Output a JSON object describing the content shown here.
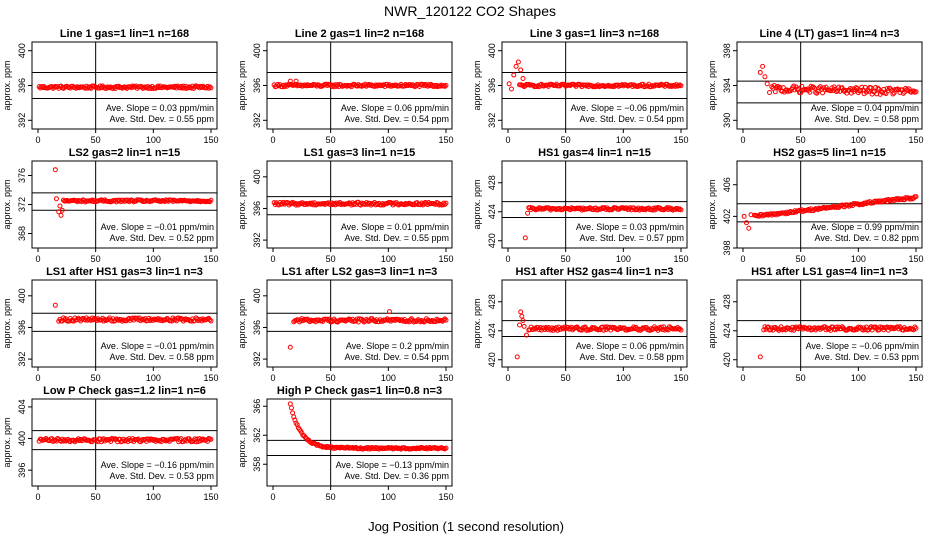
{
  "figure": {
    "title": "NWR_120122  CO2 Shapes",
    "xlabel": "Jog Position (1 second resolution)"
  },
  "chart_data": [
    {
      "type": "scatter",
      "title": "Line 1 gas=1 lin=1 n=168",
      "ylabel": "approx. ppm",
      "xlim": [
        0,
        150
      ],
      "ylim": [
        391,
        401
      ],
      "yticks": [
        392,
        396,
        400
      ],
      "xticks": [
        0,
        50,
        100,
        150
      ],
      "hlines": [
        397.5,
        394.5
      ],
      "vline": 50,
      "slope": "Ave. Slope = 0.03  ppm/min",
      "std": "Ave. Std. Dev. = 0.55  ppm",
      "points": {
        "start": 1,
        "end": 150,
        "base": 395.8,
        "trend": 0.0,
        "noise": 0.15,
        "spikes": []
      }
    },
    {
      "type": "scatter",
      "title": "Line 2 gas=1 lin=2 n=168",
      "ylabel": "approx. ppm",
      "xlim": [
        0,
        150
      ],
      "ylim": [
        391,
        401
      ],
      "yticks": [
        392,
        396,
        400
      ],
      "xticks": [
        0,
        50,
        100,
        150
      ],
      "hlines": [
        397.5,
        394.5
      ],
      "vline": 50,
      "slope": "Ave. Slope = 0.06  ppm/min",
      "std": "Ave. Std. Dev. = 0.54  ppm",
      "points": {
        "start": 1,
        "end": 150,
        "base": 396.0,
        "trend": 0.0,
        "noise": 0.15,
        "spikes": [
          [
            15,
            396.5
          ],
          [
            20,
            396.5
          ]
        ]
      }
    },
    {
      "type": "scatter",
      "title": "Line 3 gas=1 lin=3 n=168",
      "ylabel": "approx. ppm",
      "xlim": [
        0,
        150
      ],
      "ylim": [
        391,
        401
      ],
      "yticks": [
        392,
        396,
        400
      ],
      "xticks": [
        0,
        50,
        100,
        150
      ],
      "hlines": [
        397.5,
        394.5
      ],
      "vline": 50,
      "slope": "Ave. Slope = −0.06  ppm/min",
      "std": "Ave. Std. Dev. = 0.54  ppm",
      "points": {
        "start": 10,
        "end": 150,
        "base": 396.0,
        "trend": 0.0,
        "noise": 0.15,
        "spikes": [
          [
            1,
            396.2
          ],
          [
            3,
            395.6
          ],
          [
            5,
            397.2
          ],
          [
            7,
            398.2
          ],
          [
            9,
            398.7
          ],
          [
            11,
            397.8
          ],
          [
            13,
            396.8
          ]
        ]
      }
    },
    {
      "type": "scatter",
      "title": "Line 4 (LT) gas=1 lin=4 n=3",
      "ylabel": "approx. ppm",
      "xlim": [
        0,
        150
      ],
      "ylim": [
        389,
        399
      ],
      "yticks": [
        390,
        394,
        398
      ],
      "xticks": [
        0,
        50,
        100,
        150
      ],
      "hlines": [
        394.5,
        392.0
      ],
      "vline": 50,
      "slope": "Ave. Slope = 0.04  ppm/min",
      "std": "Ave. Std. Dev. = 0.58  ppm",
      "points": {
        "start": 25,
        "end": 150,
        "base": 393.6,
        "trend": -0.3,
        "noise": 0.4,
        "spikes": [
          [
            15,
            395.5
          ],
          [
            17,
            396.2
          ],
          [
            19,
            395.0
          ],
          [
            21,
            394.2
          ],
          [
            23,
            393.2
          ]
        ]
      }
    },
    {
      "type": "scatter",
      "title": "LS2 gas=2 lin=1 n=15",
      "ylabel": "approx. ppm",
      "xlim": [
        0,
        150
      ],
      "ylim": [
        366,
        378
      ],
      "yticks": [
        368,
        372,
        376
      ],
      "xticks": [
        0,
        50,
        100,
        150
      ],
      "hlines": [
        373.6,
        371.2
      ],
      "vline": 50,
      "slope": "Ave. Slope = −0.01  ppm/min",
      "std": "Ave. Std. Dev. = 0.52  ppm",
      "points": {
        "start": 22,
        "end": 150,
        "base": 372.5,
        "trend": 0.0,
        "noise": 0.15,
        "spikes": [
          [
            15,
            376.8
          ],
          [
            16,
            372.8
          ],
          [
            18,
            371.0
          ],
          [
            19,
            371.8
          ],
          [
            20,
            370.5
          ],
          [
            21,
            371.2
          ]
        ]
      }
    },
    {
      "type": "scatter",
      "title": "LS1 gas=3 lin=1 n=15",
      "ylabel": "approx. ppm",
      "xlim": [
        0,
        150
      ],
      "ylim": [
        391,
        402
      ],
      "yticks": [
        392,
        396,
        400
      ],
      "xticks": [
        0,
        50,
        100,
        150
      ],
      "hlines": [
        397.5,
        395.2
      ],
      "vline": 50,
      "slope": "Ave. Slope = 0.01  ppm/min",
      "std": "Ave. Std. Dev. = 0.55  ppm",
      "points": {
        "start": 1,
        "end": 150,
        "base": 396.6,
        "trend": 0.0,
        "noise": 0.18,
        "spikes": []
      }
    },
    {
      "type": "scatter",
      "title": "HS1 gas=4 lin=1 n=15",
      "ylabel": "approx. ppm",
      "xlim": [
        0,
        150
      ],
      "ylim": [
        419,
        431
      ],
      "yticks": [
        420,
        424,
        428
      ],
      "xticks": [
        0,
        50,
        100,
        150
      ],
      "hlines": [
        425.4,
        423.2
      ],
      "vline": 50,
      "slope": "Ave. Slope = 0.03  ppm/min",
      "std": "Ave. Std. Dev. = 0.57  ppm",
      "points": {
        "start": 18,
        "end": 150,
        "base": 424.4,
        "trend": 0.0,
        "noise": 0.18,
        "spikes": [
          [
            15,
            420.4
          ],
          [
            17,
            423.8
          ]
        ]
      }
    },
    {
      "type": "scatter",
      "title": "HS2 gas=5 lin=1 n=15",
      "ylabel": "approx. ppm",
      "xlim": [
        0,
        150
      ],
      "ylim": [
        398,
        409
      ],
      "yticks": [
        398,
        402,
        406
      ],
      "xticks": [
        0,
        50,
        100,
        150
      ],
      "hlines": [
        403.6,
        401.3
      ],
      "vline": 50,
      "slope": "Ave. Slope = 0.99  ppm/min",
      "std": "Ave. Std. Dev. = 0.82  ppm",
      "points": {
        "start": 10,
        "end": 150,
        "base": 402.0,
        "trend": 2.4,
        "noise": 0.15,
        "spikes": [
          [
            1,
            402.0
          ],
          [
            3,
            401.2
          ],
          [
            5,
            400.5
          ],
          [
            7,
            402.2
          ]
        ]
      }
    },
    {
      "type": "scatter",
      "title": "LS1 after HS1 gas=3 lin=1 n=3",
      "ylabel": "approx. ppm",
      "xlim": [
        0,
        150
      ],
      "ylim": [
        391,
        402
      ],
      "yticks": [
        392,
        396,
        400
      ],
      "xticks": [
        0,
        50,
        100,
        150
      ],
      "hlines": [
        397.8,
        395.5
      ],
      "vline": 50,
      "slope": "Ave. Slope = −0.01  ppm/min",
      "std": "Ave. Std. Dev. = 0.58  ppm",
      "points": {
        "start": 18,
        "end": 150,
        "base": 397.0,
        "trend": 0.0,
        "noise": 0.22,
        "spikes": [
          [
            15,
            398.8
          ]
        ]
      }
    },
    {
      "type": "scatter",
      "title": "LS1 after LS2 gas=3 lin=1 n=3",
      "ylabel": "approx. ppm",
      "xlim": [
        0,
        150
      ],
      "ylim": [
        391,
        402
      ],
      "yticks": [
        392,
        396,
        400
      ],
      "xticks": [
        0,
        50,
        100,
        150
      ],
      "hlines": [
        397.8,
        395.5
      ],
      "vline": 50,
      "slope": "Ave. Slope = 0.2  ppm/min",
      "std": "Ave. Std. Dev. = 0.54  ppm",
      "points": {
        "start": 18,
        "end": 150,
        "base": 396.9,
        "trend": 0.0,
        "noise": 0.22,
        "spikes": [
          [
            15,
            393.5
          ],
          [
            101,
            398.0
          ]
        ]
      }
    },
    {
      "type": "scatter",
      "title": "HS1 after HS2 gas=4 lin=1 n=3",
      "ylabel": "approx. ppm",
      "xlim": [
        0,
        150
      ],
      "ylim": [
        419,
        431
      ],
      "yticks": [
        420,
        424,
        428
      ],
      "xticks": [
        0,
        50,
        100,
        150
      ],
      "hlines": [
        425.4,
        423.2
      ],
      "vline": 50,
      "slope": "Ave. Slope = 0.06  ppm/min",
      "std": "Ave. Std. Dev. = 0.58  ppm",
      "points": {
        "start": 18,
        "end": 150,
        "base": 424.3,
        "trend": 0.0,
        "noise": 0.25,
        "spikes": [
          [
            8,
            420.4
          ],
          [
            10,
            424.8
          ],
          [
            11,
            426.6
          ],
          [
            12,
            426.0
          ],
          [
            13,
            425.4
          ],
          [
            14,
            424.6
          ],
          [
            16,
            423.4
          ]
        ]
      }
    },
    {
      "type": "scatter",
      "title": "HS1 after LS1 gas=4 lin=1 n=3",
      "ylabel": "approx. ppm",
      "xlim": [
        0,
        150
      ],
      "ylim": [
        419,
        431
      ],
      "yticks": [
        420,
        424,
        428
      ],
      "xticks": [
        0,
        50,
        100,
        150
      ],
      "hlines": [
        425.4,
        423.2
      ],
      "vline": 50,
      "slope": "Ave. Slope = −0.06  ppm/min",
      "std": "Ave. Std. Dev. = 0.53  ppm",
      "points": {
        "start": 18,
        "end": 150,
        "base": 424.3,
        "trend": 0.0,
        "noise": 0.25,
        "spikes": [
          [
            15,
            420.4
          ]
        ]
      }
    },
    {
      "type": "scatter",
      "title": "Low P Check gas=1.2 lin=1 n=6",
      "ylabel": "approx. ppm",
      "xlim": [
        0,
        150
      ],
      "ylim": [
        394,
        405
      ],
      "yticks": [
        396,
        400,
        404
      ],
      "xticks": [
        0,
        50,
        100,
        150
      ],
      "hlines": [
        401.0,
        398.6
      ],
      "vline": 50,
      "slope": "Ave. Slope = −0.16  ppm/min",
      "std": "Ave. Std. Dev. = 0.53  ppm",
      "points": {
        "start": 1,
        "end": 150,
        "base": 399.8,
        "trend": 0.0,
        "noise": 0.22,
        "spikes": []
      }
    },
    {
      "type": "scatter",
      "title": "High P Check gas=1 lin=0.8 n=3",
      "ylabel": "approx. ppm",
      "xlim": [
        0,
        150
      ],
      "ylim": [
        355,
        367
      ],
      "yticks": [
        358,
        362,
        366
      ],
      "xticks": [
        0,
        50,
        100,
        150
      ],
      "hlines": [
        361.3,
        359.2
      ],
      "vline": 50,
      "slope": "Ave. Slope = −0.13  ppm/min",
      "std": "Ave. Std. Dev. = 0.36  ppm",
      "points": {
        "start": 15,
        "end": 150,
        "base": 360.2,
        "trend": 0.0,
        "noise": 0.12,
        "decay": {
          "amp": 6.2,
          "tau": 9
        }
      }
    }
  ],
  "colors": {
    "points": "#ff0000",
    "axis": "#000000"
  }
}
